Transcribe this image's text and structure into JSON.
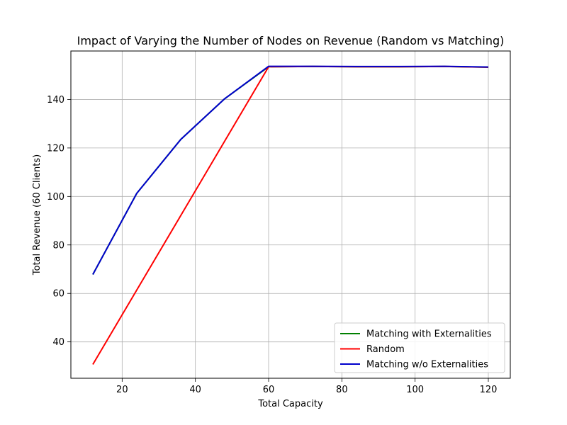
{
  "chart_data": {
    "type": "line",
    "title": "Impact of Varying the Number of Nodes on Revenue (Random vs Matching)",
    "xlabel": "Total Capacity",
    "ylabel": "Total Revenue (60 Clients)",
    "xlim": [
      6,
      126
    ],
    "ylim": [
      25,
      160
    ],
    "xticks": [
      20,
      40,
      60,
      80,
      100,
      120
    ],
    "yticks": [
      40,
      60,
      80,
      100,
      120,
      140
    ],
    "grid": true,
    "legend_position": "lower-right",
    "series": [
      {
        "name": "Matching with Externalities",
        "color": "#008000",
        "x": [
          12,
          24,
          36,
          48,
          60,
          72,
          84,
          96,
          108,
          120
        ],
        "y": [
          67.8,
          101.3,
          123.5,
          140.3,
          153.5,
          153.6,
          153.5,
          153.5,
          153.6,
          153.3
        ]
      },
      {
        "name": "Random",
        "color": "#ff0000",
        "x": [
          12,
          24,
          36,
          48,
          60,
          72,
          84,
          96,
          108,
          120
        ],
        "y": [
          30.7,
          61.4,
          92.1,
          122.8,
          153.5,
          153.6,
          153.5,
          153.5,
          153.6,
          153.3
        ]
      },
      {
        "name": "Matching w/o Externalities",
        "color": "#0000cc",
        "x": [
          12,
          24,
          36,
          48,
          60,
          72,
          84,
          96,
          108,
          120
        ],
        "y": [
          67.8,
          101.3,
          123.5,
          140.3,
          153.7,
          153.7,
          153.6,
          153.6,
          153.7,
          153.4
        ]
      }
    ]
  }
}
